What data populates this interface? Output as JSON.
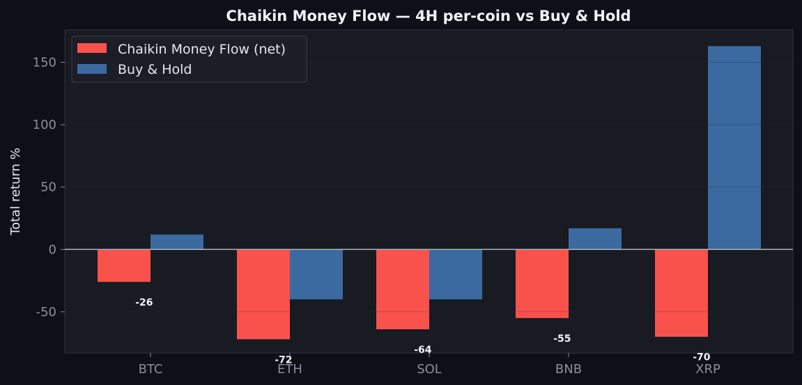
{
  "chart_data": {
    "type": "bar",
    "title": "Chaikin Money Flow — 4H per-coin vs Buy & Hold",
    "ylabel": "Total return %",
    "xlabel": "",
    "categories": [
      "BTC",
      "ETH",
      "SOL",
      "BNB",
      "XRP"
    ],
    "series": [
      {
        "name": "Chaikin Money Flow (net)",
        "color": "#f9524c",
        "values": [
          -26,
          -72,
          -64,
          -55,
          -70
        ],
        "data_labels": [
          "-26",
          "-72",
          "-64",
          "-55",
          "-70"
        ]
      },
      {
        "name": "Buy & Hold",
        "color": "#3b6aa0",
        "values": [
          12,
          -40,
          -40,
          17,
          163
        ]
      }
    ],
    "ylim": [
      -83,
      176
    ],
    "yticks": [
      -50,
      0,
      50,
      100,
      150
    ],
    "ytick_labels": [
      "-50",
      "0",
      "50",
      "100",
      "150"
    ],
    "grid": true,
    "legend_position": "top-left"
  }
}
